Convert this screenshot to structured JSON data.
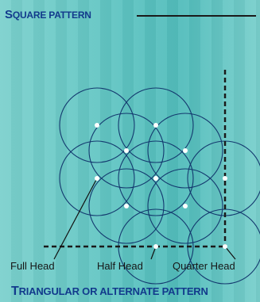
{
  "titles": {
    "top": "Square Pattern",
    "bottom": "Triangular or Alternate Pattern"
  },
  "labels": {
    "full_head": "Full Head",
    "half_head": "Half Head",
    "quarter_head": "Quarter Head"
  },
  "colors": {
    "background": "#5fc4c2",
    "title": "#123a8c",
    "circle_stroke": "#13386e",
    "boundary": "#1a1a1a",
    "head_marker": "#ffffff"
  },
  "heads": [
    {
      "type": "full"
    },
    {
      "type": "full"
    },
    {
      "type": "full"
    },
    {
      "type": "full"
    },
    {
      "type": "full"
    },
    {
      "type": "full"
    },
    {
      "type": "full"
    },
    {
      "type": "full"
    },
    {
      "type": "half"
    },
    {
      "type": "half"
    },
    {
      "type": "quarter"
    }
  ]
}
